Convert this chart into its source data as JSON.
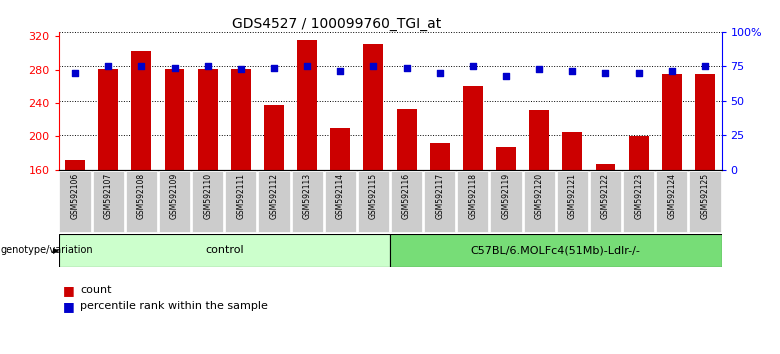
{
  "title": "GDS4527 / 100099760_TGI_at",
  "samples": [
    "GSM592106",
    "GSM592107",
    "GSM592108",
    "GSM592109",
    "GSM592110",
    "GSM592111",
    "GSM592112",
    "GSM592113",
    "GSM592114",
    "GSM592115",
    "GSM592116",
    "GSM592117",
    "GSM592118",
    "GSM592119",
    "GSM592120",
    "GSM592121",
    "GSM592122",
    "GSM592123",
    "GSM592124",
    "GSM592125"
  ],
  "counts": [
    172,
    281,
    302,
    281,
    281,
    281,
    237,
    315,
    210,
    311,
    233,
    192,
    260,
    187,
    232,
    205,
    167,
    200,
    275,
    275
  ],
  "percentiles": [
    70,
    75,
    75,
    74,
    75,
    73,
    74,
    75,
    72,
    75,
    74,
    70,
    75,
    68,
    73,
    72,
    70,
    70,
    72,
    75
  ],
  "ylim_left": [
    160,
    325
  ],
  "ylim_right": [
    0,
    100
  ],
  "yticks_left": [
    160,
    200,
    240,
    280,
    320
  ],
  "yticks_right": [
    0,
    25,
    50,
    75,
    100
  ],
  "ytick_labels_right": [
    "0",
    "25",
    "50",
    "75",
    "100%"
  ],
  "bar_color": "#cc0000",
  "dot_color": "#0000cc",
  "bg_color": "#ffffff",
  "plot_bg": "#ffffff",
  "n_control": 10,
  "n_treatment": 10,
  "control_label": "control",
  "treatment_label": "C57BL/6.MOLFc4(51Mb)-Ldlr-/-",
  "genotype_label": "genotype/variation",
  "legend_count": "count",
  "legend_percentile": "percentile rank within the sample",
  "control_color": "#ccffcc",
  "treatment_color": "#77dd77",
  "tick_bg_color": "#cccccc",
  "title_fontsize": 10,
  "axis_fontsize": 8,
  "label_fontsize": 8
}
